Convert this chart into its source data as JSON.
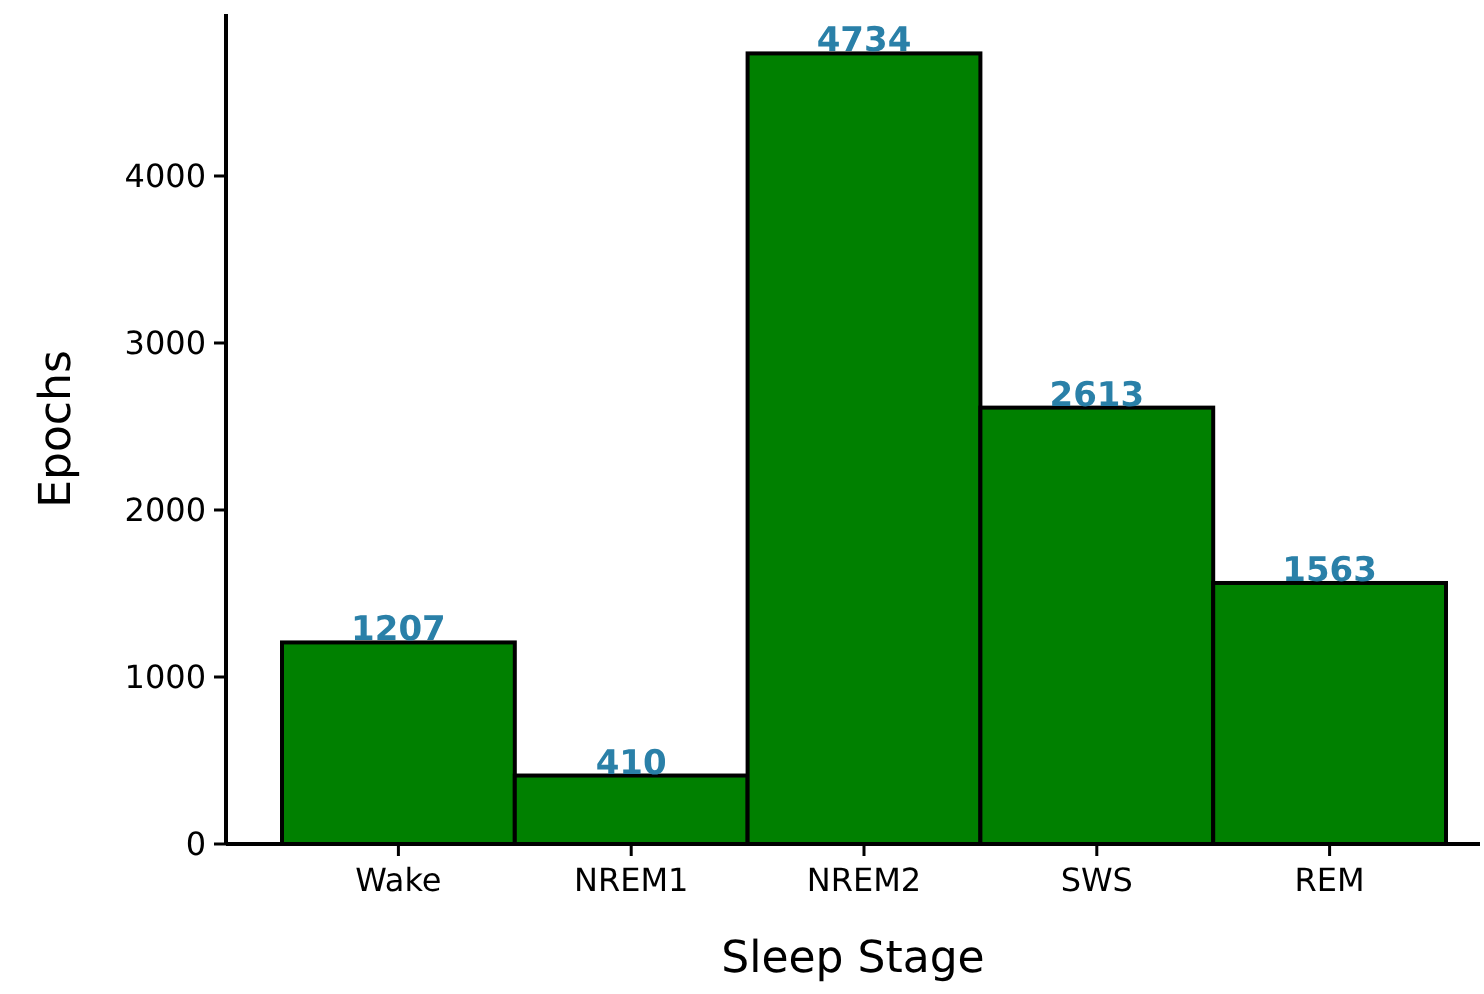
{
  "chart_data": {
    "type": "bar",
    "xlabel": "Sleep Stage",
    "ylabel": "Epochs",
    "categories": [
      "Wake",
      "NREM1",
      "NREM2",
      "SWS",
      "REM"
    ],
    "values": [
      1207,
      410,
      4734,
      2613,
      1563
    ],
    "color": "#008000",
    "ylim": [
      0,
      4970
    ],
    "yticks": [
      0,
      1000,
      2000,
      3000,
      4000
    ],
    "data_labels": true
  }
}
